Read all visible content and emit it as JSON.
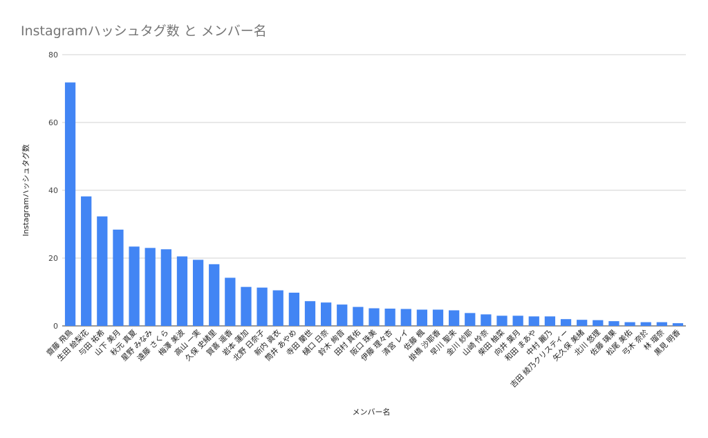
{
  "chart_data": {
    "type": "bar",
    "title": "Instagramハッシュタグ数 と メンバー名",
    "xlabel": "メンバー名",
    "ylabel": "Instagramハッシュタグ数",
    "ylim": [
      0,
      80
    ],
    "yticks": [
      "0",
      "20",
      "40",
      "60",
      "80"
    ],
    "grid": true,
    "legend": "none",
    "bar_color": "#4285f4",
    "categories": [
      "齋藤 飛鳥",
      "生田 絵梨花",
      "与田 祐希",
      "山下 美月",
      "秋元 真夏",
      "星野 みなみ",
      "遠藤 さくら",
      "梅澤 美波",
      "高山 一実",
      "久保 史緒里",
      "賀喜 遥香",
      "岩本 蓮加",
      "北野 日奈子",
      "新内 眞衣",
      "筒井 あやめ",
      "寺田 蘭世",
      "樋口 日奈",
      "鈴木 絢音",
      "田村 真佑",
      "阪口 珠美",
      "伊藤 理々杏",
      "清宮 レイ",
      "佐藤 楓",
      "掛橋 沙耶香",
      "早川 聖来",
      "金川 紗耶",
      "山崎 怜奈",
      "柴田 柚菜",
      "向井 葉月",
      "和田 まあや",
      "中村 麗乃",
      "吉田 綾乃クリスティー",
      "矢久保 美緒",
      "北川 悠理",
      "佐藤 璃果",
      "松尾 美佑",
      "弓木 奈於",
      "林 瑠奈",
      "黒見 明香"
    ],
    "values": [
      71.8,
      38.2,
      32.3,
      28.4,
      23.4,
      23.0,
      22.6,
      20.5,
      19.5,
      18.2,
      14.2,
      11.5,
      11.3,
      10.5,
      9.8,
      7.3,
      6.9,
      6.3,
      5.6,
      5.2,
      5.1,
      5.0,
      4.8,
      4.8,
      4.6,
      3.8,
      3.4,
      3.0,
      3.0,
      2.8,
      2.8,
      2.0,
      1.8,
      1.7,
      1.4,
      1.1,
      1.1,
      1.1,
      0.8
    ]
  }
}
